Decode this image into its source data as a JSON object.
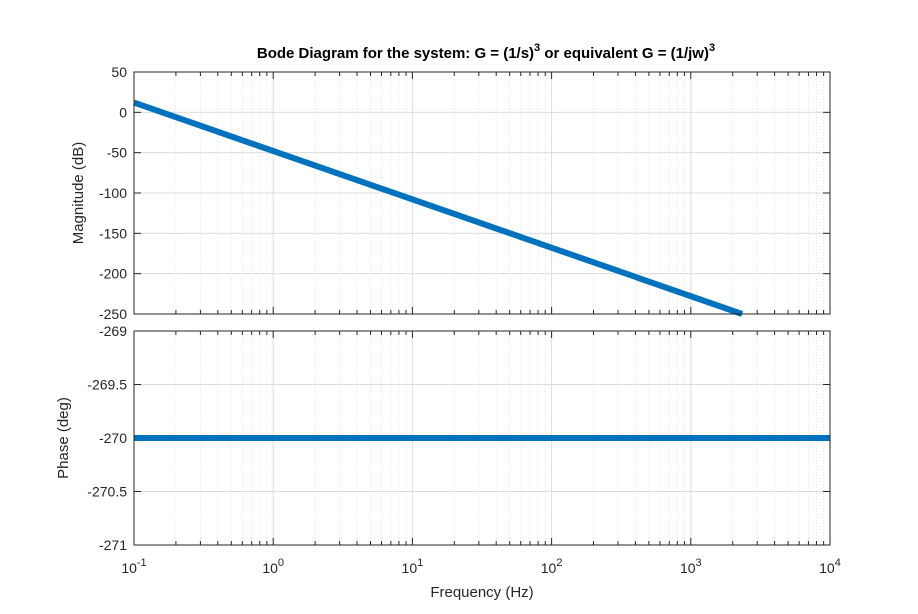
{
  "chart_data": [
    {
      "type": "line",
      "title": "Bode Diagram for the system: G = (1/s)^3 or equivalent G = (1/jw)^3",
      "title_parts": {
        "a": "Bode Diagram for the system: G = (1/s)",
        "exp1": "3",
        "b": " or equivalent G = (1/jw)",
        "exp2": "3"
      },
      "ylabel": "Magnitude (dB)",
      "xscale": "log",
      "xlim": [
        0.1,
        10000
      ],
      "ylim": [
        -250,
        50
      ],
      "yticks": [
        "50",
        "0",
        "-50",
        "-100",
        "-150",
        "-200",
        "-250"
      ],
      "grid": true,
      "series": [
        {
          "x": [
            0.1,
            2336
          ],
          "y": [
            12.1,
            -250
          ],
          "color": "#0072BD"
        }
      ]
    },
    {
      "type": "line",
      "xlabel": "Frequency  (Hz)",
      "ylabel": "Phase (deg)",
      "xscale": "log",
      "xlim": [
        0.1,
        10000
      ],
      "ylim": [
        -271,
        -269
      ],
      "yticks": [
        "-269",
        "-269.5",
        "-270",
        "-270.5",
        "-271"
      ],
      "xticks": [
        {
          "base": "10",
          "exp": "-1"
        },
        {
          "base": "10",
          "exp": "0"
        },
        {
          "base": "10",
          "exp": "1"
        },
        {
          "base": "10",
          "exp": "2"
        },
        {
          "base": "10",
          "exp": "3"
        },
        {
          "base": "10",
          "exp": "4"
        }
      ],
      "grid": true,
      "series": [
        {
          "x": [
            0.1,
            10000
          ],
          "y": [
            -270,
            -270
          ],
          "color": "#0072BD"
        }
      ]
    }
  ]
}
